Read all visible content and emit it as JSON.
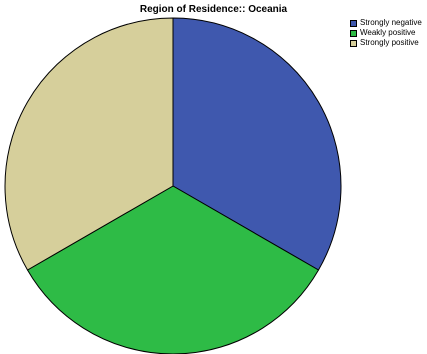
{
  "chart_data": {
    "type": "pie",
    "title": "Region of Residence:: Oceania",
    "slices": [
      {
        "label": "Strongly negative",
        "value": 33.3,
        "color": "#3f58ae"
      },
      {
        "label": "Weakly positive",
        "value": 33.3,
        "color": "#2ebb46"
      },
      {
        "label": "Strongly positive",
        "value": 33.3,
        "color": "#d6cf9b"
      }
    ],
    "legend_position": "top-right",
    "start_angle_deg": 0,
    "direction": "clockwise"
  }
}
